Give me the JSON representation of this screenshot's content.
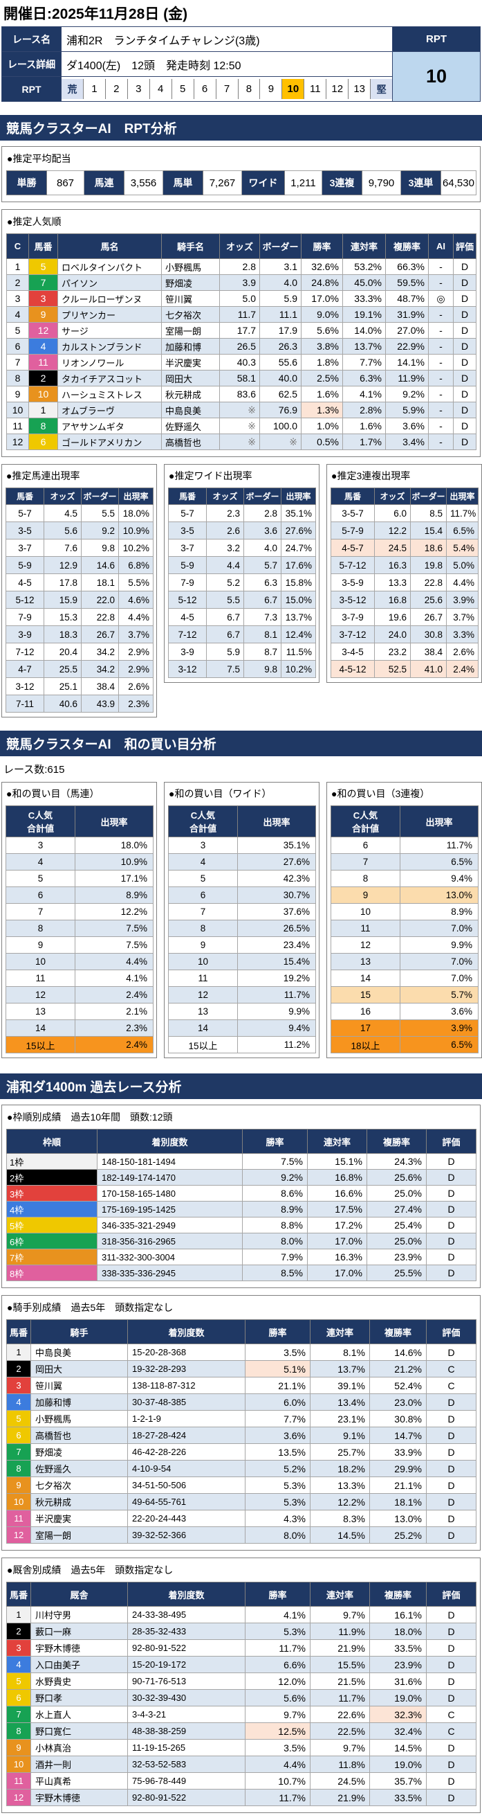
{
  "page": {
    "date": "開催日:2025年11月28日 (金)"
  },
  "race": {
    "name_label": "レース名",
    "name": "浦和2R　ランチタイムチャレンジ(3歳)",
    "detail_label": "レース詳細",
    "detail": "ダ1400(左)　12頭　発走時刻 12:50",
    "rpt_label": "RPT",
    "rpt_row_label": "RPT",
    "rpt_scale": [
      "荒",
      "1",
      "2",
      "3",
      "4",
      "5",
      "6",
      "7",
      "8",
      "9",
      "10",
      "11",
      "12",
      "13",
      "堅"
    ],
    "rpt_active": "10",
    "rpt_value": "10"
  },
  "colors": {
    "navy": "#1F3864",
    "row_alt": "#DCE6F1",
    "amber": "#FFC000",
    "light_blue": "#BDD7EE",
    "scale_end": "#D9E1F2",
    "orange": "#F7941E",
    "peach": "#FBDCAD",
    "cell_hl": "#FCE4D6",
    "waku": {
      "1": {
        "bg": "#F1F1F1",
        "fg": "#000000"
      },
      "2": {
        "bg": "#000000",
        "fg": "#FFFFFF"
      },
      "3": {
        "bg": "#E2413C",
        "fg": "#FFFFFF"
      },
      "4": {
        "bg": "#3C7CDE",
        "fg": "#FFFFFF"
      },
      "5": {
        "bg": "#EFC800",
        "fg": "#FFFFFF"
      },
      "6": {
        "bg": "#17A253",
        "fg": "#FFFFFF"
      },
      "7": {
        "bg": "#E8921E",
        "fg": "#FFFFFF"
      },
      "8": {
        "bg": "#E0609E",
        "fg": "#FFFFFF"
      }
    }
  },
  "rpt_analysis": {
    "title": "競馬クラスターAI　RPT分析",
    "payout": {
      "label": "●推定平均配当",
      "items": [
        {
          "label": "単勝",
          "value": "867"
        },
        {
          "label": "馬連",
          "value": "3,556"
        },
        {
          "label": "馬単",
          "value": "7,267"
        },
        {
          "label": "ワイド",
          "value": "1,211"
        },
        {
          "label": "3連複",
          "value": "9,790"
        },
        {
          "label": "3連単",
          "value": "64,530"
        }
      ]
    },
    "popularity": {
      "label": "●推定人気順",
      "headers": [
        "C",
        "馬番",
        "馬名",
        "騎手名",
        "オッズ",
        "ボーダー",
        "勝率",
        "連対率",
        "複勝率",
        "AI",
        "評価"
      ],
      "rows": [
        {
          "c": "1",
          "num": "5",
          "horse": "ロベルタインパクト",
          "jockey": "小野楓馬",
          "odds": "2.8",
          "border": "3.1",
          "win": "32.6%",
          "ren": "53.2%",
          "fuku": "66.3%",
          "ai": "-",
          "eval": "D",
          "hl": null
        },
        {
          "c": "2",
          "num": "7",
          "horse": "パイソン",
          "jockey": "野畑凌",
          "odds": "3.9",
          "border": "4.0",
          "win": "24.8%",
          "ren": "45.0%",
          "fuku": "59.5%",
          "ai": "-",
          "eval": "D",
          "hl": null
        },
        {
          "c": "3",
          "num": "3",
          "horse": "クルールローザンヌ",
          "jockey": "笹川翼",
          "odds": "5.0",
          "border": "5.9",
          "win": "17.0%",
          "ren": "33.3%",
          "fuku": "48.7%",
          "ai": "◎",
          "eval": "D",
          "hl": null
        },
        {
          "c": "4",
          "num": "9",
          "horse": "プリヤンカー",
          "jockey": "七夕裕次",
          "odds": "11.7",
          "border": "11.1",
          "win": "9.0%",
          "ren": "19.1%",
          "fuku": "31.9%",
          "ai": "-",
          "eval": "D",
          "hl": null
        },
        {
          "c": "5",
          "num": "12",
          "horse": "サージ",
          "jockey": "室陽一朗",
          "odds": "17.7",
          "border": "17.9",
          "win": "5.6%",
          "ren": "14.0%",
          "fuku": "27.0%",
          "ai": "-",
          "eval": "D",
          "hl": null
        },
        {
          "c": "6",
          "num": "4",
          "horse": "カルストンブランド",
          "jockey": "加藤和博",
          "odds": "26.5",
          "border": "26.3",
          "win": "3.8%",
          "ren": "13.7%",
          "fuku": "22.9%",
          "ai": "-",
          "eval": "D",
          "hl": null
        },
        {
          "c": "7",
          "num": "11",
          "horse": "リオンノワール",
          "jockey": "半沢慶実",
          "odds": "40.3",
          "border": "55.6",
          "win": "1.8%",
          "ren": "7.7%",
          "fuku": "14.1%",
          "ai": "-",
          "eval": "D",
          "hl": null
        },
        {
          "c": "8",
          "num": "2",
          "horse": "タカイチアスコット",
          "jockey": "岡田大",
          "odds": "58.1",
          "border": "40.0",
          "win": "2.5%",
          "ren": "6.3%",
          "fuku": "11.9%",
          "ai": "-",
          "eval": "D",
          "hl": null
        },
        {
          "c": "9",
          "num": "10",
          "horse": "ハーシュミストレス",
          "jockey": "秋元耕成",
          "odds": "83.6",
          "border": "62.5",
          "win": "1.6%",
          "ren": "4.1%",
          "fuku": "9.2%",
          "ai": "-",
          "eval": "D",
          "hl": null
        },
        {
          "c": "10",
          "num": "1",
          "horse": "オムブラーヴ",
          "jockey": "中島良美",
          "odds": "※",
          "border": "76.9",
          "win": "1.3%",
          "ren": "2.8%",
          "fuku": "5.9%",
          "ai": "-",
          "eval": "D",
          "hl": "win"
        },
        {
          "c": "11",
          "num": "8",
          "horse": "アヤサンムギタ",
          "jockey": "佐野遥久",
          "odds": "※",
          "border": "100.0",
          "win": "1.0%",
          "ren": "1.6%",
          "fuku": "3.6%",
          "ai": "-",
          "eval": "D",
          "hl": null
        },
        {
          "c": "12",
          "num": "6",
          "horse": "ゴールドアメリカン",
          "jockey": "高橋哲也",
          "odds": "※",
          "border": "※",
          "win": "0.5%",
          "ren": "1.7%",
          "fuku": "3.4%",
          "ai": "-",
          "eval": "D",
          "hl": null
        }
      ]
    },
    "est_umaren": {
      "label": "●推定馬連出現率",
      "headers": [
        "馬番",
        "オッズ",
        "ボーダー",
        "出現率"
      ],
      "rows": [
        [
          "5-7",
          "4.5",
          "5.5",
          "18.0%"
        ],
        [
          "3-5",
          "5.6",
          "9.2",
          "10.9%"
        ],
        [
          "3-7",
          "7.6",
          "9.8",
          "10.2%"
        ],
        [
          "5-9",
          "12.9",
          "14.6",
          "6.8%"
        ],
        [
          "4-5",
          "17.8",
          "18.1",
          "5.5%"
        ],
        [
          "5-12",
          "15.9",
          "22.0",
          "4.6%"
        ],
        [
          "7-9",
          "15.3",
          "22.8",
          "4.4%"
        ],
        [
          "3-9",
          "18.3",
          "26.7",
          "3.7%"
        ],
        [
          "7-12",
          "20.4",
          "34.2",
          "2.9%"
        ],
        [
          "4-7",
          "25.5",
          "34.2",
          "2.9%"
        ],
        [
          "3-12",
          "25.1",
          "38.4",
          "2.6%"
        ],
        [
          "7-11",
          "40.6",
          "43.9",
          "2.3%"
        ]
      ],
      "highlight_rows": []
    },
    "est_wide": {
      "label": "●推定ワイド出現率",
      "headers": [
        "馬番",
        "オッズ",
        "ボーダー",
        "出現率"
      ],
      "rows": [
        [
          "5-7",
          "2.3",
          "2.8",
          "35.1%"
        ],
        [
          "3-5",
          "2.6",
          "3.6",
          "27.6%"
        ],
        [
          "3-7",
          "3.2",
          "4.0",
          "24.7%"
        ],
        [
          "5-9",
          "4.4",
          "5.7",
          "17.6%"
        ],
        [
          "7-9",
          "5.2",
          "6.3",
          "15.8%"
        ],
        [
          "5-12",
          "5.5",
          "6.7",
          "15.0%"
        ],
        [
          "4-5",
          "6.7",
          "7.3",
          "13.7%"
        ],
        [
          "7-12",
          "6.7",
          "8.1",
          "12.4%"
        ],
        [
          "3-9",
          "5.9",
          "8.7",
          "11.5%"
        ],
        [
          "3-12",
          "7.5",
          "9.8",
          "10.2%"
        ]
      ],
      "highlight_rows": []
    },
    "est_sanrenpuku": {
      "label": "●推定3連複出現率",
      "headers": [
        "馬番",
        "オッズ",
        "ボーダー",
        "出現率"
      ],
      "rows": [
        [
          "3-5-7",
          "6.0",
          "8.5",
          "11.7%"
        ],
        [
          "5-7-9",
          "12.2",
          "15.4",
          "6.5%"
        ],
        [
          "4-5-7",
          "24.5",
          "18.6",
          "5.4%"
        ],
        [
          "5-7-12",
          "16.3",
          "19.8",
          "5.0%"
        ],
        [
          "3-5-9",
          "13.3",
          "22.8",
          "4.4%"
        ],
        [
          "3-5-12",
          "16.8",
          "25.6",
          "3.9%"
        ],
        [
          "3-7-9",
          "19.6",
          "26.7",
          "3.7%"
        ],
        [
          "3-7-12",
          "24.0",
          "30.8",
          "3.3%"
        ],
        [
          "3-4-5",
          "23.2",
          "38.4",
          "2.6%"
        ],
        [
          "4-5-12",
          "52.5",
          "41.0",
          "2.4%"
        ]
      ],
      "highlight_rows": [
        2,
        9
      ]
    }
  },
  "wa_analysis": {
    "title": "競馬クラスターAI　和の買い目分析",
    "race_count": "レース数:615",
    "umaren": {
      "label": "●和の買い目（馬連）",
      "headers": [
        "C人気\n合計値",
        "出現率"
      ],
      "rows": [
        [
          "3",
          "18.0%"
        ],
        [
          "4",
          "10.9%"
        ],
        [
          "5",
          "17.1%"
        ],
        [
          "6",
          "8.9%"
        ],
        [
          "7",
          "12.2%"
        ],
        [
          "8",
          "7.5%"
        ],
        [
          "9",
          "7.5%"
        ],
        [
          "10",
          "4.4%"
        ],
        [
          "11",
          "4.1%"
        ],
        [
          "12",
          "2.4%"
        ],
        [
          "13",
          "2.1%"
        ],
        [
          "14",
          "2.3%"
        ],
        [
          "15以上",
          "2.4%"
        ]
      ],
      "peach_rows": [],
      "orange_rows": [
        12
      ]
    },
    "wide": {
      "label": "●和の買い目（ワイド）",
      "headers": [
        "C人気\n合計値",
        "出現率"
      ],
      "rows": [
        [
          "3",
          "35.1%"
        ],
        [
          "4",
          "27.6%"
        ],
        [
          "5",
          "42.3%"
        ],
        [
          "6",
          "30.7%"
        ],
        [
          "7",
          "37.6%"
        ],
        [
          "8",
          "26.5%"
        ],
        [
          "9",
          "23.4%"
        ],
        [
          "10",
          "15.4%"
        ],
        [
          "11",
          "19.2%"
        ],
        [
          "12",
          "11.7%"
        ],
        [
          "13",
          "9.9%"
        ],
        [
          "14",
          "9.4%"
        ],
        [
          "15以上",
          "11.2%"
        ]
      ],
      "peach_rows": [],
      "orange_rows": []
    },
    "sanrenpuku": {
      "label": "●和の買い目（3連複）",
      "headers": [
        "C人気\n合計値",
        "出現率"
      ],
      "rows": [
        [
          "6",
          "11.7%"
        ],
        [
          "7",
          "6.5%"
        ],
        [
          "8",
          "9.4%"
        ],
        [
          "9",
          "13.0%"
        ],
        [
          "10",
          "8.9%"
        ],
        [
          "11",
          "7.0%"
        ],
        [
          "12",
          "9.9%"
        ],
        [
          "13",
          "7.0%"
        ],
        [
          "14",
          "7.0%"
        ],
        [
          "15",
          "5.7%"
        ],
        [
          "16",
          "3.6%"
        ],
        [
          "17",
          "3.9%"
        ],
        [
          "18以上",
          "6.5%"
        ]
      ],
      "peach_rows": [
        3,
        9
      ],
      "orange_rows": [
        11,
        12
      ]
    }
  },
  "past_analysis": {
    "title": "浦和ダ1400m 過去レース分析",
    "waku": {
      "label": "●枠順別成績　過去10年間　頭数:12頭",
      "headers": [
        "枠順",
        "着別度数",
        "勝率",
        "連対率",
        "複勝率",
        "評価"
      ],
      "rows": [
        {
          "waku": "1枠",
          "rec": "148-150-181-1494",
          "win": "7.5%",
          "ren": "15.1%",
          "fuku": "24.3%",
          "eval": "D",
          "hl": null
        },
        {
          "waku": "2枠",
          "rec": "182-149-174-1470",
          "win": "9.2%",
          "ren": "16.8%",
          "fuku": "25.6%",
          "eval": "D",
          "hl": null
        },
        {
          "waku": "3枠",
          "rec": "170-158-165-1480",
          "win": "8.6%",
          "ren": "16.6%",
          "fuku": "25.0%",
          "eval": "D",
          "hl": null
        },
        {
          "waku": "4枠",
          "rec": "175-169-195-1425",
          "win": "8.9%",
          "ren": "17.5%",
          "fuku": "27.4%",
          "eval": "D",
          "hl": null
        },
        {
          "waku": "5枠",
          "rec": "346-335-321-2949",
          "win": "8.8%",
          "ren": "17.2%",
          "fuku": "25.4%",
          "eval": "D",
          "hl": null
        },
        {
          "waku": "6枠",
          "rec": "318-356-316-2965",
          "win": "8.0%",
          "ren": "17.0%",
          "fuku": "25.0%",
          "eval": "D",
          "hl": null
        },
        {
          "waku": "7枠",
          "rec": "311-332-300-3004",
          "win": "7.9%",
          "ren": "16.3%",
          "fuku": "23.9%",
          "eval": "D",
          "hl": null
        },
        {
          "waku": "8枠",
          "rec": "338-335-336-2945",
          "win": "8.5%",
          "ren": "17.0%",
          "fuku": "25.5%",
          "eval": "D",
          "hl": null
        }
      ]
    },
    "jockey": {
      "label": "●騎手別成績　過去5年　頭数指定なし",
      "headers": [
        "馬番",
        "騎手",
        "着別度数",
        "勝率",
        "連対率",
        "複勝率",
        "評価"
      ],
      "rows": [
        {
          "num": "1",
          "name": "中島良美",
          "rec": "15-20-28-368",
          "win": "3.5%",
          "ren": "8.1%",
          "fuku": "14.6%",
          "eval": "D",
          "hl": null
        },
        {
          "num": "2",
          "name": "岡田大",
          "rec": "19-32-28-293",
          "win": "5.1%",
          "ren": "13.7%",
          "fuku": "21.2%",
          "eval": "C",
          "hl": "win"
        },
        {
          "num": "3",
          "name": "笹川翼",
          "rec": "138-118-87-312",
          "win": "21.1%",
          "ren": "39.1%",
          "fuku": "52.4%",
          "eval": "C",
          "hl": null
        },
        {
          "num": "4",
          "name": "加藤和博",
          "rec": "30-37-48-385",
          "win": "6.0%",
          "ren": "13.4%",
          "fuku": "23.0%",
          "eval": "D",
          "hl": null
        },
        {
          "num": "5",
          "name": "小野楓馬",
          "rec": "1-2-1-9",
          "win": "7.7%",
          "ren": "23.1%",
          "fuku": "30.8%",
          "eval": "D",
          "hl": null
        },
        {
          "num": "6",
          "name": "高橋哲也",
          "rec": "18-27-28-424",
          "win": "3.6%",
          "ren": "9.1%",
          "fuku": "14.7%",
          "eval": "D",
          "hl": null
        },
        {
          "num": "7",
          "name": "野畑凌",
          "rec": "46-42-28-226",
          "win": "13.5%",
          "ren": "25.7%",
          "fuku": "33.9%",
          "eval": "D",
          "hl": null
        },
        {
          "num": "8",
          "name": "佐野遥久",
          "rec": "4-10-9-54",
          "win": "5.2%",
          "ren": "18.2%",
          "fuku": "29.9%",
          "eval": "D",
          "hl": null
        },
        {
          "num": "9",
          "name": "七夕裕次",
          "rec": "34-51-50-506",
          "win": "5.3%",
          "ren": "13.3%",
          "fuku": "21.1%",
          "eval": "D",
          "hl": null
        },
        {
          "num": "10",
          "name": "秋元耕成",
          "rec": "49-64-55-761",
          "win": "5.3%",
          "ren": "12.2%",
          "fuku": "18.1%",
          "eval": "D",
          "hl": null
        },
        {
          "num": "11",
          "name": "半沢慶実",
          "rec": "22-20-24-443",
          "win": "4.3%",
          "ren": "8.3%",
          "fuku": "13.0%",
          "eval": "D",
          "hl": null
        },
        {
          "num": "12",
          "name": "室陽一朗",
          "rec": "39-32-52-366",
          "win": "8.0%",
          "ren": "14.5%",
          "fuku": "25.2%",
          "eval": "D",
          "hl": null
        }
      ]
    },
    "stable": {
      "label": "●厩舎別成績　過去5年　頭数指定なし",
      "headers": [
        "馬番",
        "厩舎",
        "着別度数",
        "勝率",
        "連対率",
        "複勝率",
        "評価"
      ],
      "rows": [
        {
          "num": "1",
          "name": "川村守男",
          "rec": "24-33-38-495",
          "win": "4.1%",
          "ren": "9.7%",
          "fuku": "16.1%",
          "eval": "D",
          "hl": null
        },
        {
          "num": "2",
          "name": "藪口一麻",
          "rec": "28-35-32-433",
          "win": "5.3%",
          "ren": "11.9%",
          "fuku": "18.0%",
          "eval": "D",
          "hl": null
        },
        {
          "num": "3",
          "name": "宇野木博徳",
          "rec": "92-80-91-522",
          "win": "11.7%",
          "ren": "21.9%",
          "fuku": "33.5%",
          "eval": "D",
          "hl": null
        },
        {
          "num": "4",
          "name": "入口由美子",
          "rec": "15-20-19-172",
          "win": "6.6%",
          "ren": "15.5%",
          "fuku": "23.9%",
          "eval": "D",
          "hl": null
        },
        {
          "num": "5",
          "name": "水野貴史",
          "rec": "90-71-76-513",
          "win": "12.0%",
          "ren": "21.5%",
          "fuku": "31.6%",
          "eval": "D",
          "hl": null
        },
        {
          "num": "6",
          "name": "野口孝",
          "rec": "30-32-39-430",
          "win": "5.6%",
          "ren": "11.7%",
          "fuku": "19.0%",
          "eval": "D",
          "hl": null
        },
        {
          "num": "7",
          "name": "水上直人",
          "rec": "3-4-3-21",
          "win": "9.7%",
          "ren": "22.6%",
          "fuku": "32.3%",
          "eval": "C",
          "hl": "fuku"
        },
        {
          "num": "8",
          "name": "野口寛仁",
          "rec": "48-38-38-259",
          "win": "12.5%",
          "ren": "22.5%",
          "fuku": "32.4%",
          "eval": "C",
          "hl": "win"
        },
        {
          "num": "9",
          "name": "小林真治",
          "rec": "11-19-15-265",
          "win": "3.5%",
          "ren": "9.7%",
          "fuku": "14.5%",
          "eval": "D",
          "hl": null
        },
        {
          "num": "10",
          "name": "酒井一則",
          "rec": "32-53-52-583",
          "win": "4.4%",
          "ren": "11.8%",
          "fuku": "19.0%",
          "eval": "D",
          "hl": null
        },
        {
          "num": "11",
          "name": "平山真希",
          "rec": "75-96-78-449",
          "win": "10.7%",
          "ren": "24.5%",
          "fuku": "35.7%",
          "eval": "D",
          "hl": null
        },
        {
          "num": "12",
          "name": "宇野木博徳",
          "rec": "92-80-91-522",
          "win": "11.7%",
          "ren": "21.9%",
          "fuku": "33.5%",
          "eval": "D",
          "hl": null
        }
      ]
    }
  }
}
